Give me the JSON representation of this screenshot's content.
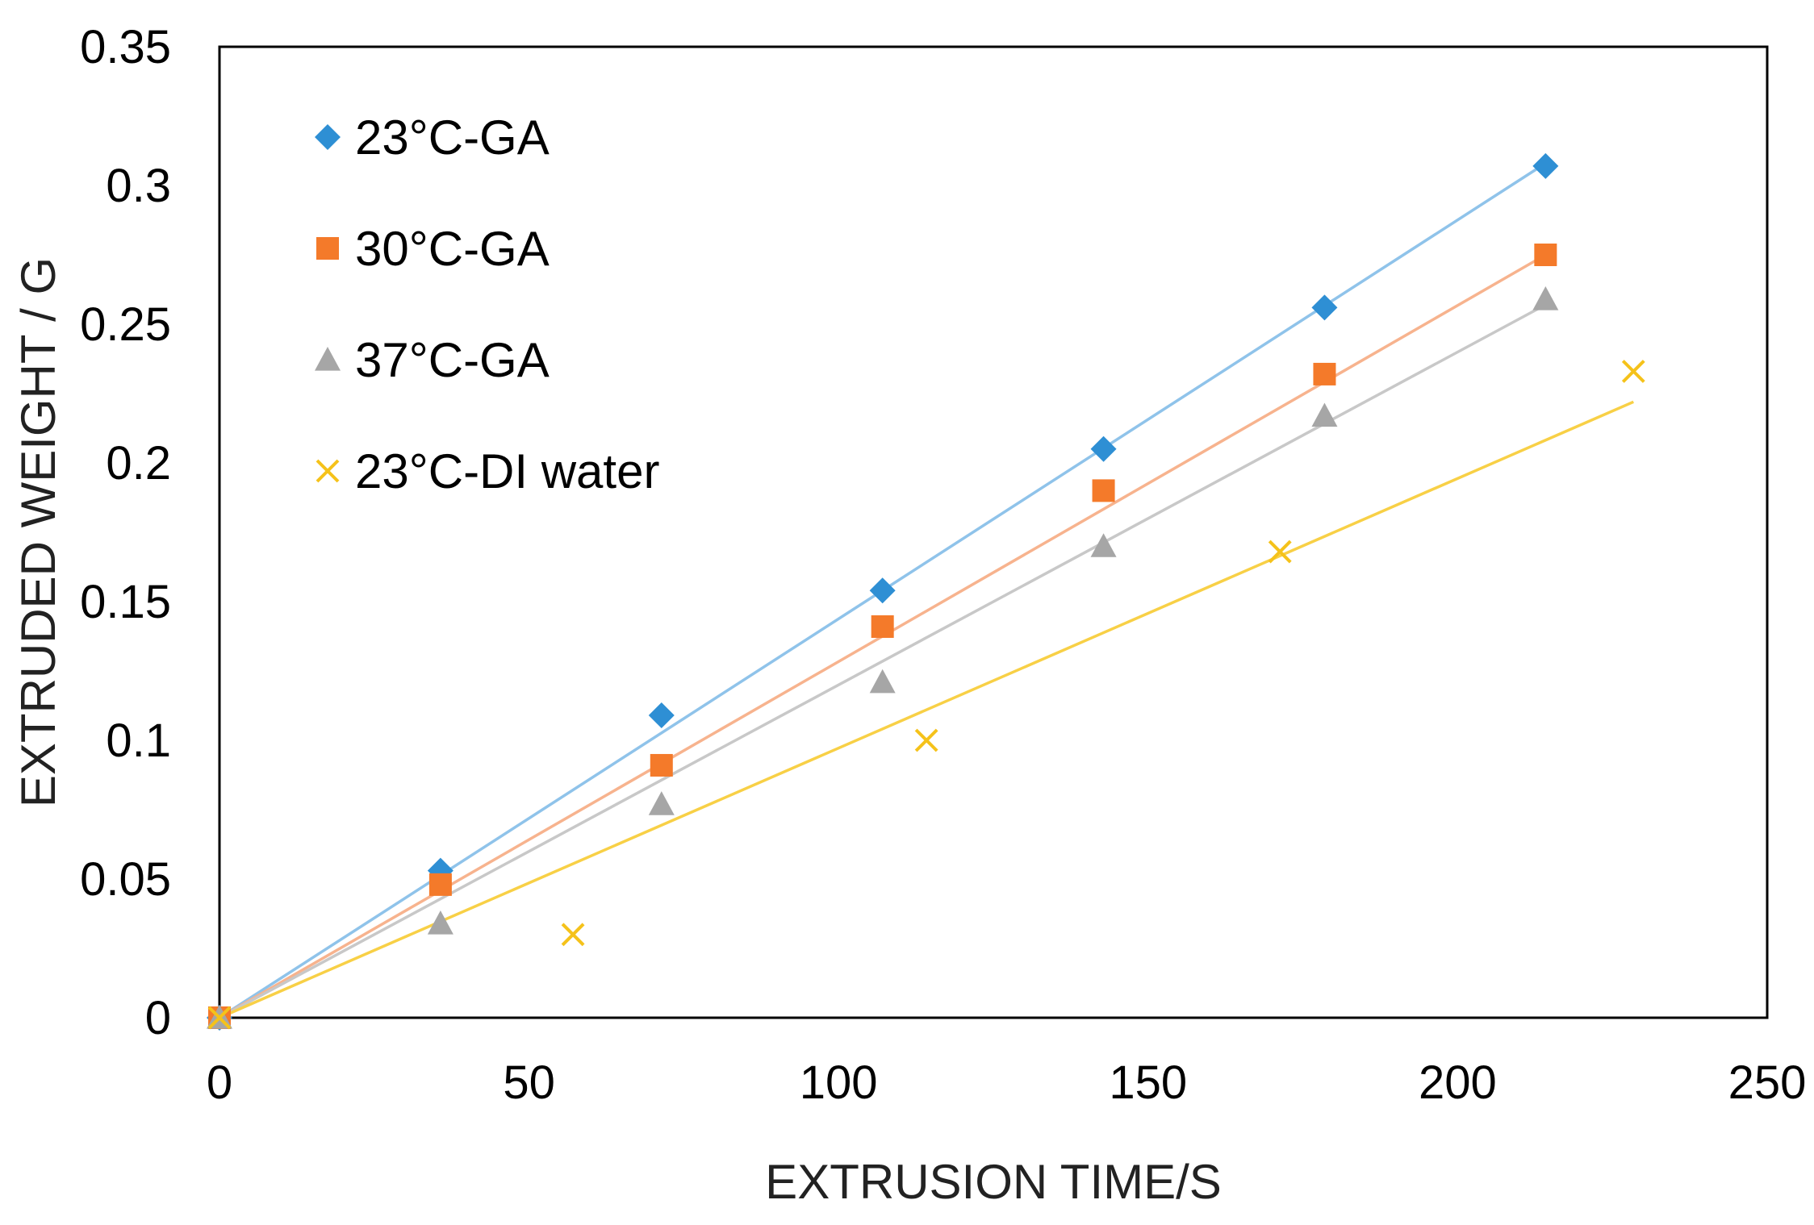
{
  "chart_data": {
    "type": "scatter",
    "xlabel": "EXTRUSION TIME/S",
    "ylabel": "EXTRUDED WEIGHT / G",
    "xlim": [
      0,
      250
    ],
    "ylim": [
      0,
      0.35
    ],
    "xticks": [
      "0",
      "50",
      "100",
      "150",
      "200",
      "250"
    ],
    "yticks": [
      "0",
      "0.05",
      "0.1",
      "0.15",
      "0.2",
      "0.25",
      "0.3",
      "0.35"
    ],
    "grid": false,
    "legend_position": "top-left",
    "trendlines": true,
    "series": [
      {
        "name": "23°C-GA",
        "marker": "diamond",
        "color": "#2e8fd4",
        "line_color": "#8fc3ea",
        "x": [
          0,
          35.7,
          71.4,
          107.1,
          142.8,
          178.5,
          214.2
        ],
        "y": [
          0,
          0.053,
          0.109,
          0.154,
          0.205,
          0.256,
          0.307
        ],
        "trend_end": [
          214.2,
          0.308
        ]
      },
      {
        "name": "30°C-GA",
        "marker": "square",
        "color": "#f47a2a",
        "line_color": "#f7b38e",
        "x": [
          0,
          35.7,
          71.4,
          107.1,
          142.8,
          178.5,
          214.2
        ],
        "y": [
          0,
          0.048,
          0.091,
          0.141,
          0.19,
          0.232,
          0.275
        ],
        "trend_end": [
          214.2,
          0.275
        ]
      },
      {
        "name": "37°C-GA",
        "marker": "triangle",
        "color": "#a6a6a6",
        "line_color": "#c8c8c8",
        "x": [
          0,
          35.7,
          71.4,
          107.1,
          142.8,
          178.5,
          214.2
        ],
        "y": [
          0,
          0.034,
          0.077,
          0.121,
          0.17,
          0.217,
          0.259
        ],
        "trend_end": [
          214.2,
          0.257
        ]
      },
      {
        "name": "23°C-DI water",
        "marker": "x",
        "color": "#f5c21a",
        "line_color": "#f8d046",
        "x": [
          0,
          57.1,
          114.2,
          171.3,
          228.4
        ],
        "y": [
          0,
          0.03,
          0.1,
          0.168,
          0.233
        ],
        "trend_end": [
          228.4,
          0.222
        ]
      }
    ]
  }
}
